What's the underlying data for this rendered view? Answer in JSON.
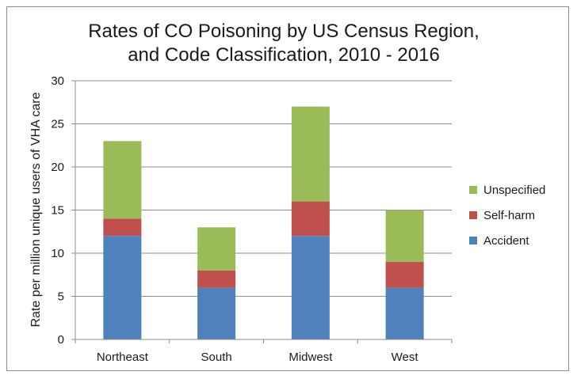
{
  "chart_data": {
    "type": "bar",
    "stacked": true,
    "title_lines": [
      "Rates of CO Poisoning by US Census Region,",
      "and Code Classification, 2010 - 2016"
    ],
    "xlabel": "",
    "ylabel": "Rate per million unique users of  VHA care",
    "categories": [
      "Northeast",
      "South",
      "Midwest",
      "West"
    ],
    "ylim": [
      0,
      30
    ],
    "yticks": [
      0,
      5,
      10,
      15,
      20,
      25,
      30
    ],
    "grid": true,
    "legend_position": "right",
    "series": [
      {
        "name": "Accident",
        "color": "#4f81bd",
        "values": [
          12,
          6,
          12,
          6
        ]
      },
      {
        "name": "Self-harm",
        "color": "#c0504d",
        "values": [
          2,
          2,
          4,
          3
        ]
      },
      {
        "name": "Unspecified",
        "color": "#9bbb59",
        "values": [
          9,
          5,
          11,
          6
        ]
      }
    ]
  }
}
